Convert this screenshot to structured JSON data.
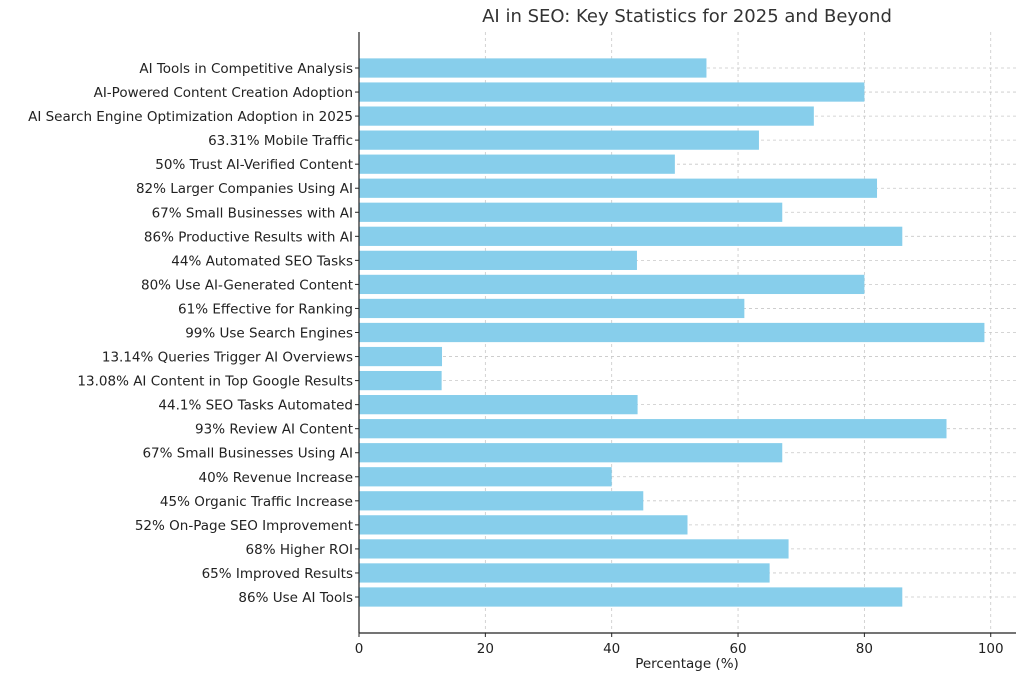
{
  "chart_data": {
    "type": "bar",
    "orientation": "horizontal",
    "title": "AI in SEO: Key Statistics for 2025 and Beyond",
    "xlabel": "Percentage (%)",
    "ylabel": "",
    "xlim": [
      0,
      104
    ],
    "xticks": [
      0,
      20,
      40,
      60,
      80,
      100
    ],
    "grid": true,
    "bar_color": "#87ceeb",
    "categories": [
      "86% Use AI Tools",
      "65% Improved Results",
      "68% Higher ROI",
      "52% On-Page SEO Improvement",
      "45% Organic Traffic Increase",
      "40% Revenue Increase",
      "67% Small Businesses Using AI",
      "93% Review AI Content",
      "44.1% SEO Tasks Automated",
      "13.08% AI Content in Top Google Results",
      "13.14% Queries Trigger AI Overviews",
      "99% Use Search Engines",
      "61% Effective for Ranking",
      "80% Use AI-Generated Content",
      "44% Automated SEO Tasks",
      "86% Productive Results with AI",
      "67% Small Businesses with AI",
      "82% Larger Companies Using AI",
      "50% Trust AI-Verified Content",
      "63.31% Mobile Traffic",
      "AI Search Engine Optimization Adoption in 2025",
      "AI-Powered Content Creation Adoption",
      "AI Tools in Competitive Analysis"
    ],
    "values": [
      86,
      65,
      68,
      52,
      45,
      40,
      67,
      93,
      44.1,
      13.08,
      13.14,
      99,
      61,
      80,
      44,
      86,
      67,
      82,
      50,
      63.31,
      72,
      80,
      55
    ]
  }
}
